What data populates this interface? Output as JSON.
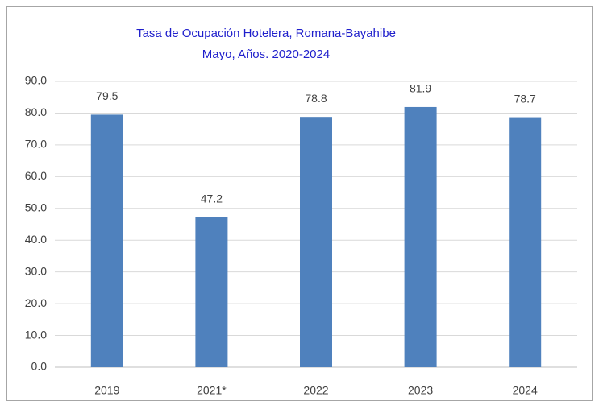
{
  "chart_data": {
    "type": "bar",
    "title": "Tasa de Ocupación Hotelera, Romana-Bayahibe",
    "subtitle": "Mayo, Años. 2020-2024",
    "title_color": "#1f1fcc",
    "categories": [
      "2019",
      "2021*",
      "2022",
      "2023",
      "2024"
    ],
    "values": [
      79.5,
      47.2,
      78.8,
      81.9,
      78.7
    ],
    "color": "#4f81bd",
    "ylim": [
      0,
      90
    ],
    "yticks": [
      {
        "value": 0,
        "label": "0.0"
      },
      {
        "value": 10,
        "label": "10.0"
      },
      {
        "value": 20,
        "label": "20.0"
      },
      {
        "value": 30,
        "label": "30.0"
      },
      {
        "value": 40,
        "label": "40.0"
      },
      {
        "value": 50,
        "label": "50.0"
      },
      {
        "value": 60,
        "label": "60.0"
      },
      {
        "value": 70,
        "label": "70.0"
      },
      {
        "value": 80,
        "label": "80.0"
      },
      {
        "value": 90,
        "label": "90.0"
      }
    ],
    "grid": true
  }
}
